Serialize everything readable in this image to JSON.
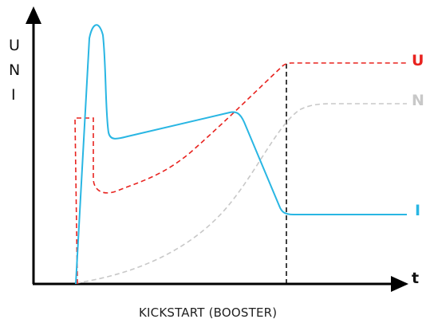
{
  "diagram": {
    "caption": "KICKSTART (BOOSTER)",
    "y_axis_letters": [
      "U",
      "N",
      "I"
    ],
    "x_axis_label": "t",
    "curve_labels": {
      "U": "U",
      "N": "N",
      "I": "I"
    }
  },
  "colors": {
    "axis": "#000000",
    "U": "#e8231f",
    "N": "#c8c8c8",
    "I": "#29b6e3",
    "marker_line": "#000000"
  }
}
